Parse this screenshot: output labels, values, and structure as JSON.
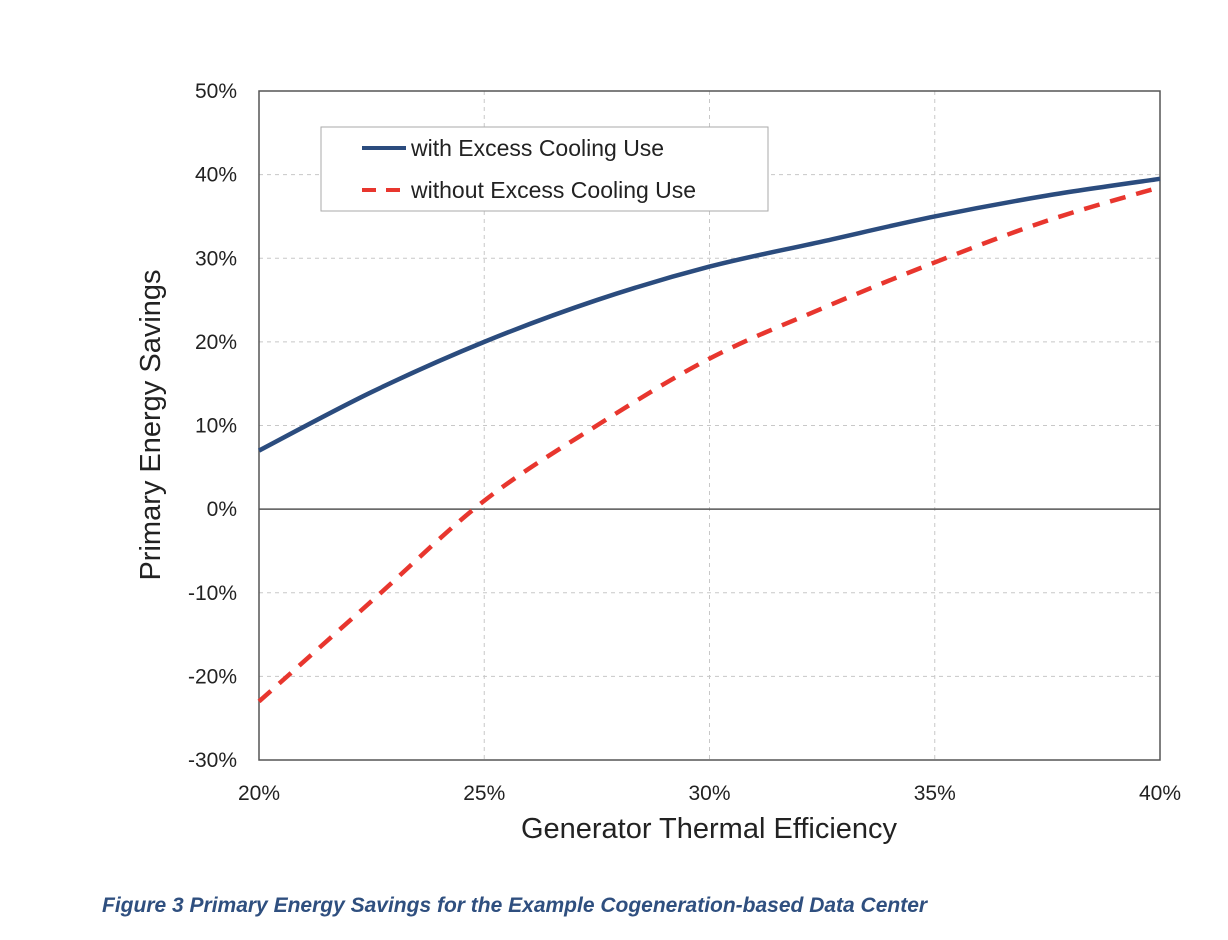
{
  "chart_data": {
    "type": "line",
    "xlabel": "Generator Thermal Efficiency",
    "ylabel": "Primary Energy Savings",
    "xlim": [
      20,
      40
    ],
    "ylim": [
      -30,
      50
    ],
    "x_ticks": [
      20,
      25,
      30,
      35,
      40
    ],
    "x_tick_labels": [
      "20%",
      "25%",
      "30%",
      "35%",
      "40%"
    ],
    "y_ticks": [
      -30,
      -20,
      -10,
      0,
      10,
      20,
      30,
      40,
      50
    ],
    "y_tick_labels": [
      "-30%",
      "-20%",
      "-10%",
      "0%",
      "10%",
      "20%",
      "30%",
      "40%",
      "50%"
    ],
    "grid": true,
    "legend_position": "top-left",
    "series": [
      {
        "name": "with Excess Cooling Use",
        "color": "#2b4c7e",
        "style": "solid",
        "x": [
          20,
          22.5,
          25,
          27.5,
          30,
          32.5,
          35,
          37.5,
          40
        ],
        "y": [
          7,
          14,
          20,
          25,
          29,
          32,
          35,
          37.5,
          39.5
        ]
      },
      {
        "name": "without Excess Cooling Use",
        "color": "#e8362e",
        "style": "dashed",
        "x": [
          20,
          22.5,
          25,
          27.5,
          30,
          32.5,
          35,
          37.5,
          40
        ],
        "y": [
          -23,
          -11,
          1,
          10,
          18,
          24,
          29.5,
          34.5,
          38.5
        ]
      }
    ]
  },
  "caption": "Figure 3 Primary Energy Savings for the Example Cogeneration-based Data Center"
}
